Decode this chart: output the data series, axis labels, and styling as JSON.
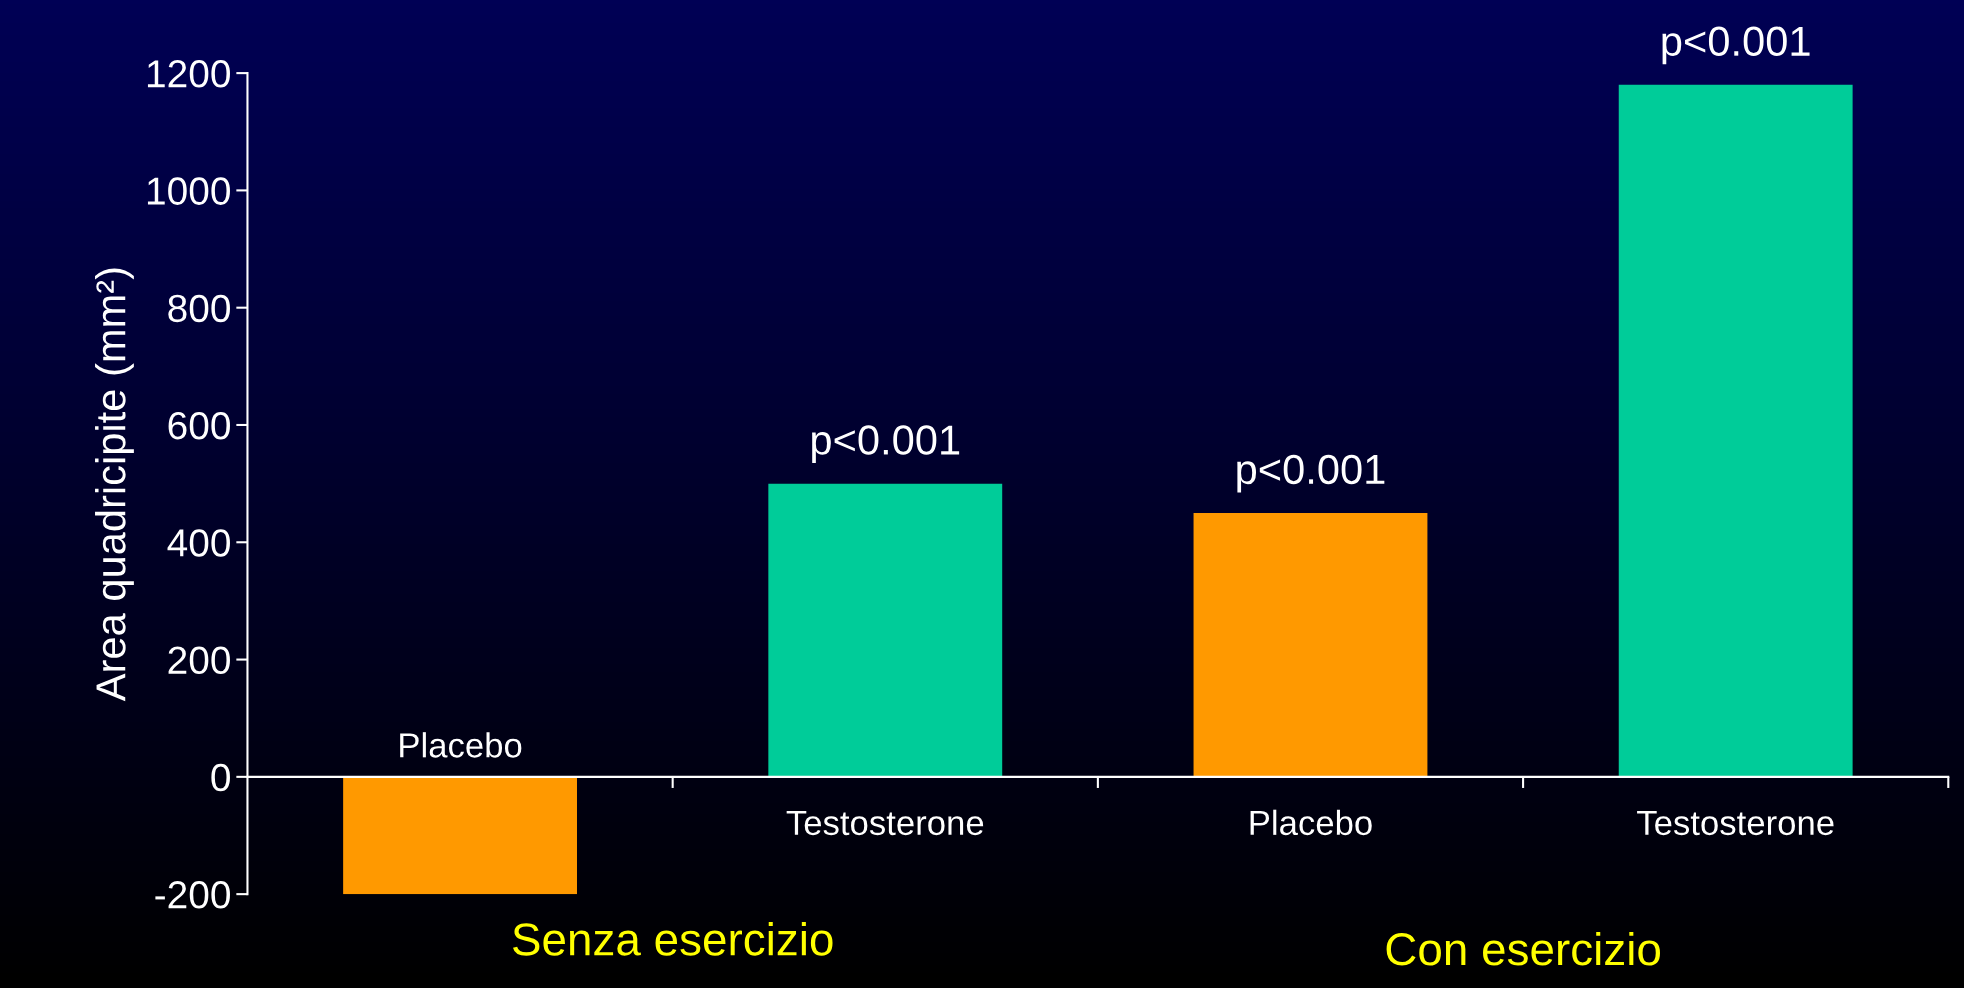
{
  "chart_data": {
    "type": "bar",
    "ylabel": "Area quadricipite (mm²)",
    "categories": [
      "Placebo",
      "Testosterone",
      "Placebo",
      "Testosterone"
    ],
    "values": [
      -200,
      500,
      450,
      1180
    ],
    "colors": [
      "#ff9900",
      "#00cc99",
      "#ff9900",
      "#00cc99"
    ],
    "ylim": [
      -200,
      1200
    ],
    "yticks": [
      {
        "value": -200,
        "label": "-200"
      },
      0,
      200,
      400,
      600,
      800,
      1000,
      1200
    ],
    "annotations": [
      "p<0.001",
      "p<0.001",
      "p<0.001",
      "Senza esercizio",
      "Con esercizio"
    ],
    "grid": false,
    "legend": false
  }
}
